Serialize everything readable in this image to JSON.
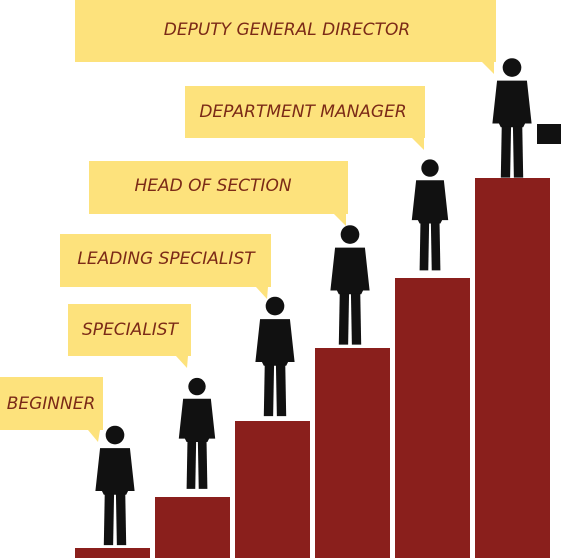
{
  "labels": [
    "BEGINNER",
    "SPECIALIST",
    "LEADING SPECIALIST",
    "HEAD OF SECTION",
    "DEPARTMENT MANAGER",
    "DEPUTY GENERAL DIRECTOR"
  ]
}
